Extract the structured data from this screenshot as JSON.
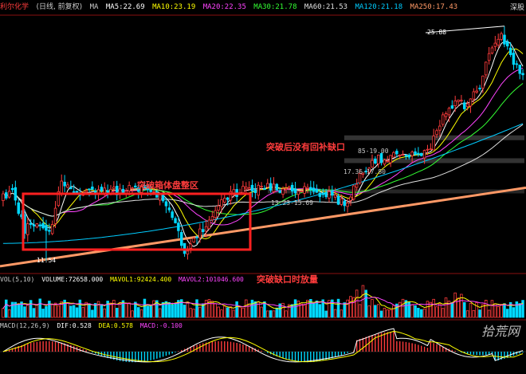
{
  "header": {
    "stock_name": "利尔化学",
    "period": "(日线, 前复权)",
    "ma_label": "MA",
    "items": [
      {
        "text": "MA5:22.69",
        "color": "#ffffff"
      },
      {
        "text": "MA10:23.19",
        "color": "#ffff00"
      },
      {
        "text": "MA20:22.35",
        "color": "#ff44ff"
      },
      {
        "text": "MA30:21.78",
        "color": "#33ff33"
      },
      {
        "text": "MA60:21.53",
        "color": "#e0e0e0"
      },
      {
        "text": "MA120:21.18",
        "color": "#00ccff"
      },
      {
        "text": "MA250:17.43",
        "color": "#ff9966"
      }
    ],
    "right_label": "深股"
  },
  "vol_header": {
    "items": [
      {
        "text": "VOL(5,10)",
        "color": "#c8c8c8"
      },
      {
        "text": "VOLUME:72658.000",
        "color": "#ffffff"
      },
      {
        "text": "MAVOL1:92424.400",
        "color": "#ffff00"
      },
      {
        "text": "MAVOL2:101046.600",
        "color": "#ff44ff"
      }
    ]
  },
  "macd_header": {
    "items": [
      {
        "text": "MACD(12,26,9)",
        "color": "#c8c8c8"
      },
      {
        "text": "DIF:0.528",
        "color": "#ffffff"
      },
      {
        "text": "DEA:0.578",
        "color": "#ffff00"
      },
      {
        "text": "MACD:-0.100",
        "color": "#ff44ff"
      }
    ]
  },
  "annotations": {
    "box_label": "突破箱体盘整区",
    "gap_label": "突破后没有回补缺口",
    "vol_label": "突破缺口时放量"
  },
  "price_labels": {
    "high": "25.88",
    "low": "11.54",
    "level_1": "85-19.00",
    "level_2": "17.36-17.80",
    "level_3": "13.23-15.69"
  },
  "watermark": "拾荒网",
  "colors": {
    "up": "#ff3c3c",
    "down": "#00d8ff",
    "box": "#ff2020",
    "trendline": "#ff9966"
  },
  "chart_data": {
    "type": "candlestick",
    "symbol": "利尔化学",
    "high": 25.88,
    "low": 11.54,
    "ylim": [
      11,
      26.5
    ],
    "candles": [],
    "volume": [],
    "macd_hist": []
  }
}
